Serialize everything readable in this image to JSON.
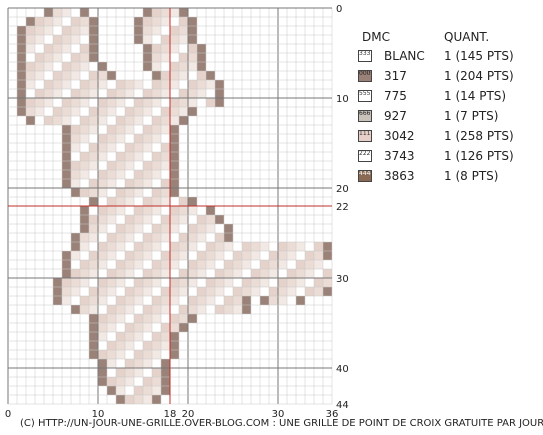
{
  "axes": {
    "x_ticks": [
      "0",
      "10",
      "18",
      "20",
      "30",
      "36"
    ],
    "y_ticks": [
      "0",
      "10",
      "20",
      "22",
      "30",
      "40",
      "44"
    ]
  },
  "legend": {
    "header_code": "DMC",
    "header_qty": "QUANT.",
    "items": [
      {
        "code": "BLANC",
        "qty": "1 (145 PTS)",
        "symbol": "3",
        "color": "#ffffff",
        "text_color": "#333333"
      },
      {
        "code": "317",
        "qty": "1 (204 PTS)",
        "symbol": "0",
        "color": "#9a8278",
        "text_color": "#1a1a1a"
      },
      {
        "code": "775",
        "qty": "1 (14 PTS)",
        "symbol": "5",
        "color": "#ffffff",
        "text_color": "#333333"
      },
      {
        "code": "927",
        "qty": "1 (7 PTS)",
        "symbol": "6",
        "color": "#c9c2bb",
        "text_color": "#222222"
      },
      {
        "code": "3042",
        "qty": "1 (258 PTS)",
        "symbol": "1",
        "color": "#e6cfc8",
        "text_color": "#333333"
      },
      {
        "code": "3743",
        "qty": "1 (126 PTS)",
        "symbol": "2",
        "color": "#ffffff",
        "text_color": "#333333"
      },
      {
        "code": "3863",
        "qty": "1 (8 PTS)",
        "symbol": "4",
        "color": "#8a6a52",
        "text_color": "#ffffff"
      }
    ]
  },
  "footer": "(C) HTTP://UN-JOUR-UNE-GRILLE.OVER-BLOG.COM : UNE GRILLE DE POINT DE CROIX GRATUITE PAR JOUR"
}
